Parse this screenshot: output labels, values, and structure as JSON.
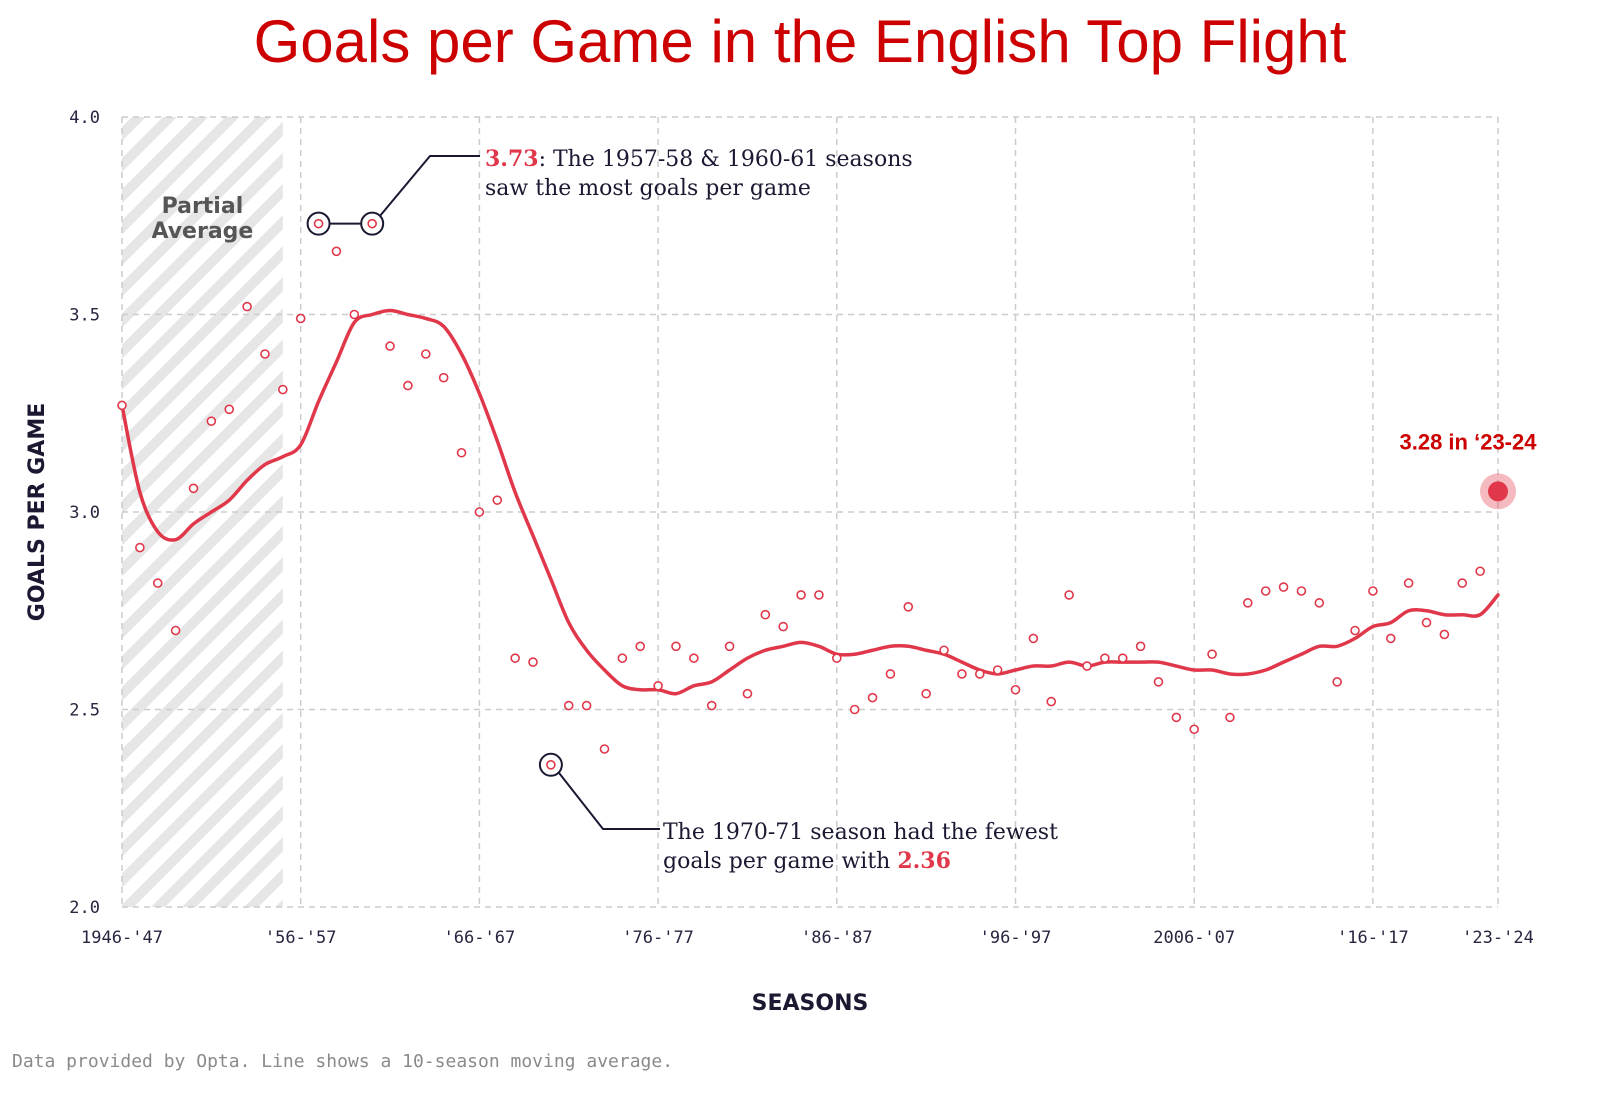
{
  "title": "Goals per Game in the English Top Flight",
  "colors": {
    "title": "#cc0000",
    "accent": "#e0384a",
    "line": "#e0384a",
    "points": "#e0384a",
    "grid": "#cccccc",
    "annotation": "#1c1832",
    "partial_band": "#e6e6e6"
  },
  "partial_label": [
    "Partial",
    "Average"
  ],
  "latest_callout": "3.28 in ‘23-24",
  "annotation_high": {
    "value": "3.73",
    "line1_rest": ": The 1957-58 & 1960-61 seasons",
    "line2": "saw the most goals per game"
  },
  "annotation_low": {
    "line1": "The 1970-71 season had the fewest",
    "line2_prefix": "goals per game with ",
    "value": "2.36"
  },
  "footnote": "Data provided by Opta. Line shows a 10-season moving average.",
  "chart_data": {
    "type": "scatter",
    "title": "Goals per Game in the English Top Flight",
    "xlabel": "SEASONS",
    "ylabel": "GOALS PER GAME",
    "ylim": [
      2.0,
      4.0
    ],
    "yticks": [
      "2.0",
      "2.5",
      "3.0",
      "3.5",
      "4.0"
    ],
    "xticks": [
      {
        "label": "1946-'47",
        "index": 0
      },
      {
        "label": "'56-'57",
        "index": 10
      },
      {
        "label": "'66-'67",
        "index": 20
      },
      {
        "label": "'76-'77",
        "index": 30
      },
      {
        "label": "'86-'87",
        "index": 40
      },
      {
        "label": "'96-'97",
        "index": 50
      },
      {
        "label": "2006-'07",
        "index": 60
      },
      {
        "label": "'16-'17",
        "index": 70
      },
      {
        "label": "'23-'24",
        "index": 77
      }
    ],
    "grid": true,
    "partial_average_range": [
      0,
      9
    ],
    "series": [
      {
        "values": [
          3.27,
          2.91,
          2.82,
          2.7,
          3.06,
          3.23,
          3.26,
          3.52,
          3.4,
          3.31,
          3.49,
          3.73,
          3.66,
          3.5,
          3.73,
          3.42,
          3.32,
          3.4,
          3.34,
          3.15,
          3.0,
          3.03,
          2.63,
          2.62,
          2.36,
          2.51,
          2.51,
          2.4,
          2.63,
          2.66,
          2.56,
          2.66,
          2.63,
          2.51,
          2.66,
          2.54,
          2.74,
          2.71,
          2.79,
          2.79,
          2.63,
          2.5,
          2.53,
          2.59,
          2.76,
          2.54,
          2.65,
          2.59,
          2.59,
          2.6,
          2.55,
          2.68,
          2.52,
          2.79,
          2.61,
          2.63,
          2.63,
          2.66,
          2.57,
          2.48,
          2.45,
          2.64,
          2.48,
          2.77,
          2.8,
          2.81,
          2.8,
          2.77,
          2.57,
          2.7,
          2.8,
          2.68,
          2.82,
          2.72,
          2.69,
          2.82,
          2.85,
          3.28
        ]
      },
      {
        "name": "10-season moving average",
        "type": "line",
        "values": [
          3.27,
          3.05,
          2.95,
          2.93,
          2.97,
          3.0,
          3.03,
          3.08,
          3.12,
          3.14,
          3.17,
          3.28,
          3.38,
          3.48,
          3.5,
          3.51,
          3.5,
          3.49,
          3.47,
          3.4,
          3.3,
          3.18,
          3.05,
          2.94,
          2.83,
          2.72,
          2.65,
          2.6,
          2.56,
          2.55,
          2.55,
          2.54,
          2.56,
          2.57,
          2.6,
          2.63,
          2.65,
          2.66,
          2.67,
          2.66,
          2.64,
          2.64,
          2.65,
          2.66,
          2.66,
          2.65,
          2.64,
          2.62,
          2.6,
          2.59,
          2.6,
          2.61,
          2.61,
          2.62,
          2.61,
          2.62,
          2.62,
          2.62,
          2.62,
          2.61,
          2.6,
          2.6,
          2.59,
          2.59,
          2.6,
          2.62,
          2.64,
          2.66,
          2.66,
          2.68,
          2.71,
          2.72,
          2.75,
          2.75,
          2.74,
          2.74,
          2.74,
          2.79
        ]
      }
    ],
    "highlights": [
      {
        "index": 11,
        "value": 3.73,
        "label": "1957-58"
      },
      {
        "index": 14,
        "value": 3.73,
        "label": "1960-61"
      },
      {
        "index": 24,
        "value": 2.36,
        "label": "1970-71"
      },
      {
        "index": 77,
        "value": 3.28,
        "label": "2023-24"
      }
    ]
  }
}
